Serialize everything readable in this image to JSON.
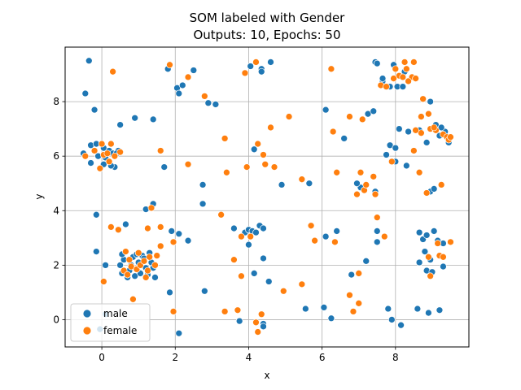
{
  "chart_data": {
    "type": "scatter",
    "title": "SOM labeled with Gender",
    "subtitle": "Outputs: 10, Epochs: 50",
    "xlabel": "x",
    "ylabel": "y",
    "xlim": [
      -1,
      10
    ],
    "ylim": [
      -1,
      10
    ],
    "xticks": [
      0,
      2,
      4,
      6,
      8
    ],
    "yticks": [
      0,
      2,
      4,
      6,
      8
    ],
    "grid": true,
    "legend_position": "lower-left",
    "series": [
      {
        "name": "male",
        "color": "#1f77b4",
        "points": [
          [
            -0.35,
            9.5
          ],
          [
            -0.45,
            8.3
          ],
          [
            -0.2,
            7.7
          ],
          [
            0.5,
            7.15
          ],
          [
            0.9,
            7.4
          ],
          [
            1.4,
            7.35
          ],
          [
            -0.5,
            6.1
          ],
          [
            -0.3,
            6.4
          ],
          [
            -0.15,
            6.45
          ],
          [
            0.05,
            6.3
          ],
          [
            0.2,
            6.2
          ],
          [
            -0.1,
            6.0
          ],
          [
            0.1,
            5.95
          ],
          [
            0.3,
            6.1
          ],
          [
            0.35,
            5.6
          ],
          [
            0.25,
            5.65
          ],
          [
            -0.3,
            5.75
          ],
          [
            0.05,
            5.7
          ],
          [
            0.45,
            6.2
          ],
          [
            0.4,
            6.1
          ],
          [
            -0.15,
            3.85
          ],
          [
            -0.15,
            2.5
          ],
          [
            0.1,
            2.0
          ],
          [
            -0.05,
            -0.35
          ],
          [
            0.1,
            0.2
          ],
          [
            0.65,
            3.5
          ],
          [
            1.2,
            4.05
          ],
          [
            1.4,
            4.25
          ],
          [
            0.85,
            2.3
          ],
          [
            0.95,
            2.4
          ],
          [
            1.1,
            2.35
          ],
          [
            1.3,
            2.45
          ],
          [
            0.5,
            2.0
          ],
          [
            0.55,
            1.7
          ],
          [
            0.75,
            1.8
          ],
          [
            0.9,
            1.6
          ],
          [
            1.05,
            1.7
          ],
          [
            1.2,
            1.9
          ],
          [
            1.35,
            2.1
          ],
          [
            1.45,
            1.55
          ],
          [
            0.6,
            2.2
          ],
          [
            0.8,
            2.0
          ],
          [
            1.0,
            2.1
          ],
          [
            1.25,
            1.65
          ],
          [
            0.7,
            1.55
          ],
          [
            1.15,
            2.25
          ],
          [
            0.55,
            2.4
          ],
          [
            1.4,
            1.9
          ],
          [
            1.8,
            9.2
          ],
          [
            2.05,
            8.5
          ],
          [
            2.1,
            8.3
          ],
          [
            2.5,
            9.15
          ],
          [
            2.2,
            8.6
          ],
          [
            1.7,
            5.6
          ],
          [
            2.75,
            4.95
          ],
          [
            2.75,
            4.25
          ],
          [
            2.1,
            3.15
          ],
          [
            1.9,
            3.25
          ],
          [
            2.35,
            2.9
          ],
          [
            1.85,
            1.0
          ],
          [
            2.8,
            1.05
          ],
          [
            2.1,
            -0.5
          ],
          [
            4.05,
            9.3
          ],
          [
            4.35,
            9.2
          ],
          [
            4.35,
            9.1
          ],
          [
            4.6,
            9.45
          ],
          [
            2.9,
            7.95
          ],
          [
            3.1,
            7.9
          ],
          [
            4.15,
            6.25
          ],
          [
            4.9,
            4.95
          ],
          [
            5.65,
            5.0
          ],
          [
            3.6,
            3.35
          ],
          [
            3.9,
            3.2
          ],
          [
            4.0,
            3.3
          ],
          [
            4.1,
            3.25
          ],
          [
            4.3,
            3.45
          ],
          [
            4.4,
            3.35
          ],
          [
            4.2,
            3.2
          ],
          [
            4.4,
            2.25
          ],
          [
            4.0,
            2.75
          ],
          [
            4.15,
            1.7
          ],
          [
            4.55,
            1.4
          ],
          [
            3.75,
            -0.05
          ],
          [
            4.4,
            -0.15
          ],
          [
            4.4,
            -0.25
          ],
          [
            5.55,
            0.4
          ],
          [
            6.1,
            7.7
          ],
          [
            6.6,
            6.65
          ],
          [
            6.1,
            3.05
          ],
          [
            6.4,
            3.25
          ],
          [
            6.05,
            0.45
          ],
          [
            6.25,
            0.05
          ],
          [
            6.8,
            1.65
          ],
          [
            7.2,
            2.15
          ],
          [
            7.05,
            4.85
          ],
          [
            7.25,
            7.55
          ],
          [
            7.45,
            4.7
          ],
          [
            6.95,
            5.0
          ],
          [
            7.4,
            7.65
          ],
          [
            7.5,
            3.25
          ],
          [
            7.5,
            2.85
          ],
          [
            7.75,
            6.05
          ],
          [
            7.85,
            6.4
          ],
          [
            7.65,
            8.75
          ],
          [
            7.45,
            9.45
          ],
          [
            7.5,
            9.4
          ],
          [
            7.65,
            8.85
          ],
          [
            7.95,
            9.35
          ],
          [
            8.05,
            8.55
          ],
          [
            8.2,
            8.55
          ],
          [
            8.25,
            9.1
          ],
          [
            7.85,
            8.55
          ],
          [
            8.1,
            7.0
          ],
          [
            8.35,
            6.9
          ],
          [
            8.0,
            5.8
          ],
          [
            8.0,
            6.3
          ],
          [
            8.3,
            5.65
          ],
          [
            7.8,
            0.4
          ],
          [
            7.9,
            0.0
          ],
          [
            8.15,
            -0.2
          ],
          [
            8.6,
            0.4
          ],
          [
            8.65,
            6.95
          ],
          [
            8.65,
            3.2
          ],
          [
            8.65,
            2.1
          ],
          [
            8.75,
            2.95
          ],
          [
            8.8,
            2.5
          ],
          [
            8.85,
            3.1
          ],
          [
            8.95,
            2.2
          ],
          [
            9.05,
            3.25
          ],
          [
            9.15,
            2.9
          ],
          [
            9.3,
            2.8
          ],
          [
            9.3,
            1.95
          ],
          [
            8.95,
            4.7
          ],
          [
            9.05,
            4.8
          ],
          [
            8.95,
            8.0
          ],
          [
            8.85,
            6.5
          ],
          [
            9.1,
            7.15
          ],
          [
            9.2,
            6.75
          ],
          [
            9.35,
            6.9
          ],
          [
            9.45,
            6.5
          ],
          [
            8.85,
            1.8
          ],
          [
            9.0,
            1.75
          ],
          [
            8.9,
            0.25
          ],
          [
            9.2,
            0.35
          ],
          [
            9.25,
            7.05
          ]
        ]
      },
      {
        "name": "female",
        "color": "#ff7f0e",
        "points": [
          [
            0.3,
            9.1
          ],
          [
            -0.45,
            6.0
          ],
          [
            -0.2,
            6.2
          ],
          [
            0.0,
            6.45
          ],
          [
            0.25,
            6.45
          ],
          [
            0.05,
            6.05
          ],
          [
            -0.05,
            5.55
          ],
          [
            0.35,
            6.0
          ],
          [
            0.2,
            5.8
          ],
          [
            0.15,
            6.1
          ],
          [
            0.5,
            6.15
          ],
          [
            0.05,
            1.4
          ],
          [
            0.25,
            3.4
          ],
          [
            0.45,
            3.3
          ],
          [
            0.65,
            2.5
          ],
          [
            0.75,
            2.2
          ],
          [
            0.8,
            1.95
          ],
          [
            0.95,
            1.85
          ],
          [
            1.05,
            2.0
          ],
          [
            1.15,
            2.15
          ],
          [
            1.25,
            1.8
          ],
          [
            1.3,
            2.3
          ],
          [
            1.45,
            2.0
          ],
          [
            1.5,
            2.35
          ],
          [
            0.6,
            1.8
          ],
          [
            0.7,
            1.65
          ],
          [
            1.0,
            2.45
          ],
          [
            1.2,
            1.55
          ],
          [
            0.85,
            0.75
          ],
          [
            1.25,
            3.35
          ],
          [
            1.6,
            3.4
          ],
          [
            1.35,
            4.1
          ],
          [
            1.6,
            2.7
          ],
          [
            1.95,
            2.85
          ],
          [
            1.6,
            6.2
          ],
          [
            1.85,
            9.35
          ],
          [
            2.35,
            8.9
          ],
          [
            2.8,
            8.2
          ],
          [
            2.35,
            5.7
          ],
          [
            1.95,
            0.3
          ],
          [
            3.35,
            6.65
          ],
          [
            3.4,
            5.4
          ],
          [
            3.9,
            9.05
          ],
          [
            4.2,
            9.45
          ],
          [
            4.25,
            6.45
          ],
          [
            4.4,
            6.05
          ],
          [
            4.45,
            5.7
          ],
          [
            4.7,
            5.6
          ],
          [
            3.95,
            5.6
          ],
          [
            4.6,
            7.05
          ],
          [
            5.1,
            7.45
          ],
          [
            5.45,
            5.15
          ],
          [
            5.7,
            3.45
          ],
          [
            5.8,
            2.9
          ],
          [
            3.25,
            3.85
          ],
          [
            3.6,
            2.2
          ],
          [
            3.8,
            3.05
          ],
          [
            4.05,
            3.05
          ],
          [
            3.8,
            1.6
          ],
          [
            4.2,
            -0.1
          ],
          [
            4.25,
            -0.45
          ],
          [
            4.35,
            0.2
          ],
          [
            3.7,
            0.35
          ],
          [
            3.35,
            0.3
          ],
          [
            4.95,
            1.05
          ],
          [
            5.45,
            1.3
          ],
          [
            6.25,
            9.2
          ],
          [
            6.3,
            6.9
          ],
          [
            6.4,
            5.4
          ],
          [
            6.75,
            7.45
          ],
          [
            6.35,
            2.85
          ],
          [
            6.75,
            0.9
          ],
          [
            6.85,
            0.3
          ],
          [
            6.95,
            4.6
          ],
          [
            7.05,
            5.4
          ],
          [
            7.15,
            4.75
          ],
          [
            7.2,
            4.95
          ],
          [
            7.4,
            5.25
          ],
          [
            7.45,
            4.6
          ],
          [
            7.1,
            7.35
          ],
          [
            7.0,
            1.7
          ],
          [
            7.0,
            0.6
          ],
          [
            7.5,
            3.75
          ],
          [
            7.6,
            8.6
          ],
          [
            7.75,
            8.55
          ],
          [
            7.7,
            3.05
          ],
          [
            7.9,
            5.8
          ],
          [
            8.1,
            8.95
          ],
          [
            8.25,
            9.45
          ],
          [
            8.3,
            9.2
          ],
          [
            8.5,
            9.45
          ],
          [
            8.45,
            8.9
          ],
          [
            8.55,
            8.85
          ],
          [
            8.0,
            9.2
          ],
          [
            7.95,
            8.85
          ],
          [
            8.35,
            8.75
          ],
          [
            8.2,
            8.9
          ],
          [
            8.5,
            6.2
          ],
          [
            8.7,
            6.85
          ],
          [
            8.75,
            8.1
          ],
          [
            8.55,
            6.95
          ],
          [
            8.7,
            7.45
          ],
          [
            8.9,
            7.55
          ],
          [
            8.95,
            7.0
          ],
          [
            8.65,
            5.4
          ],
          [
            8.85,
            4.65
          ],
          [
            9.1,
            6.95
          ],
          [
            9.3,
            6.8
          ],
          [
            9.4,
            6.7
          ],
          [
            9.45,
            6.6
          ],
          [
            9.5,
            6.7
          ],
          [
            9.25,
            4.95
          ],
          [
            8.9,
            2.3
          ],
          [
            8.95,
            1.6
          ],
          [
            9.15,
            2.8
          ],
          [
            9.2,
            2.35
          ],
          [
            9.3,
            2.3
          ],
          [
            9.5,
            2.85
          ],
          [
            9.05,
            7.05
          ]
        ]
      }
    ]
  }
}
